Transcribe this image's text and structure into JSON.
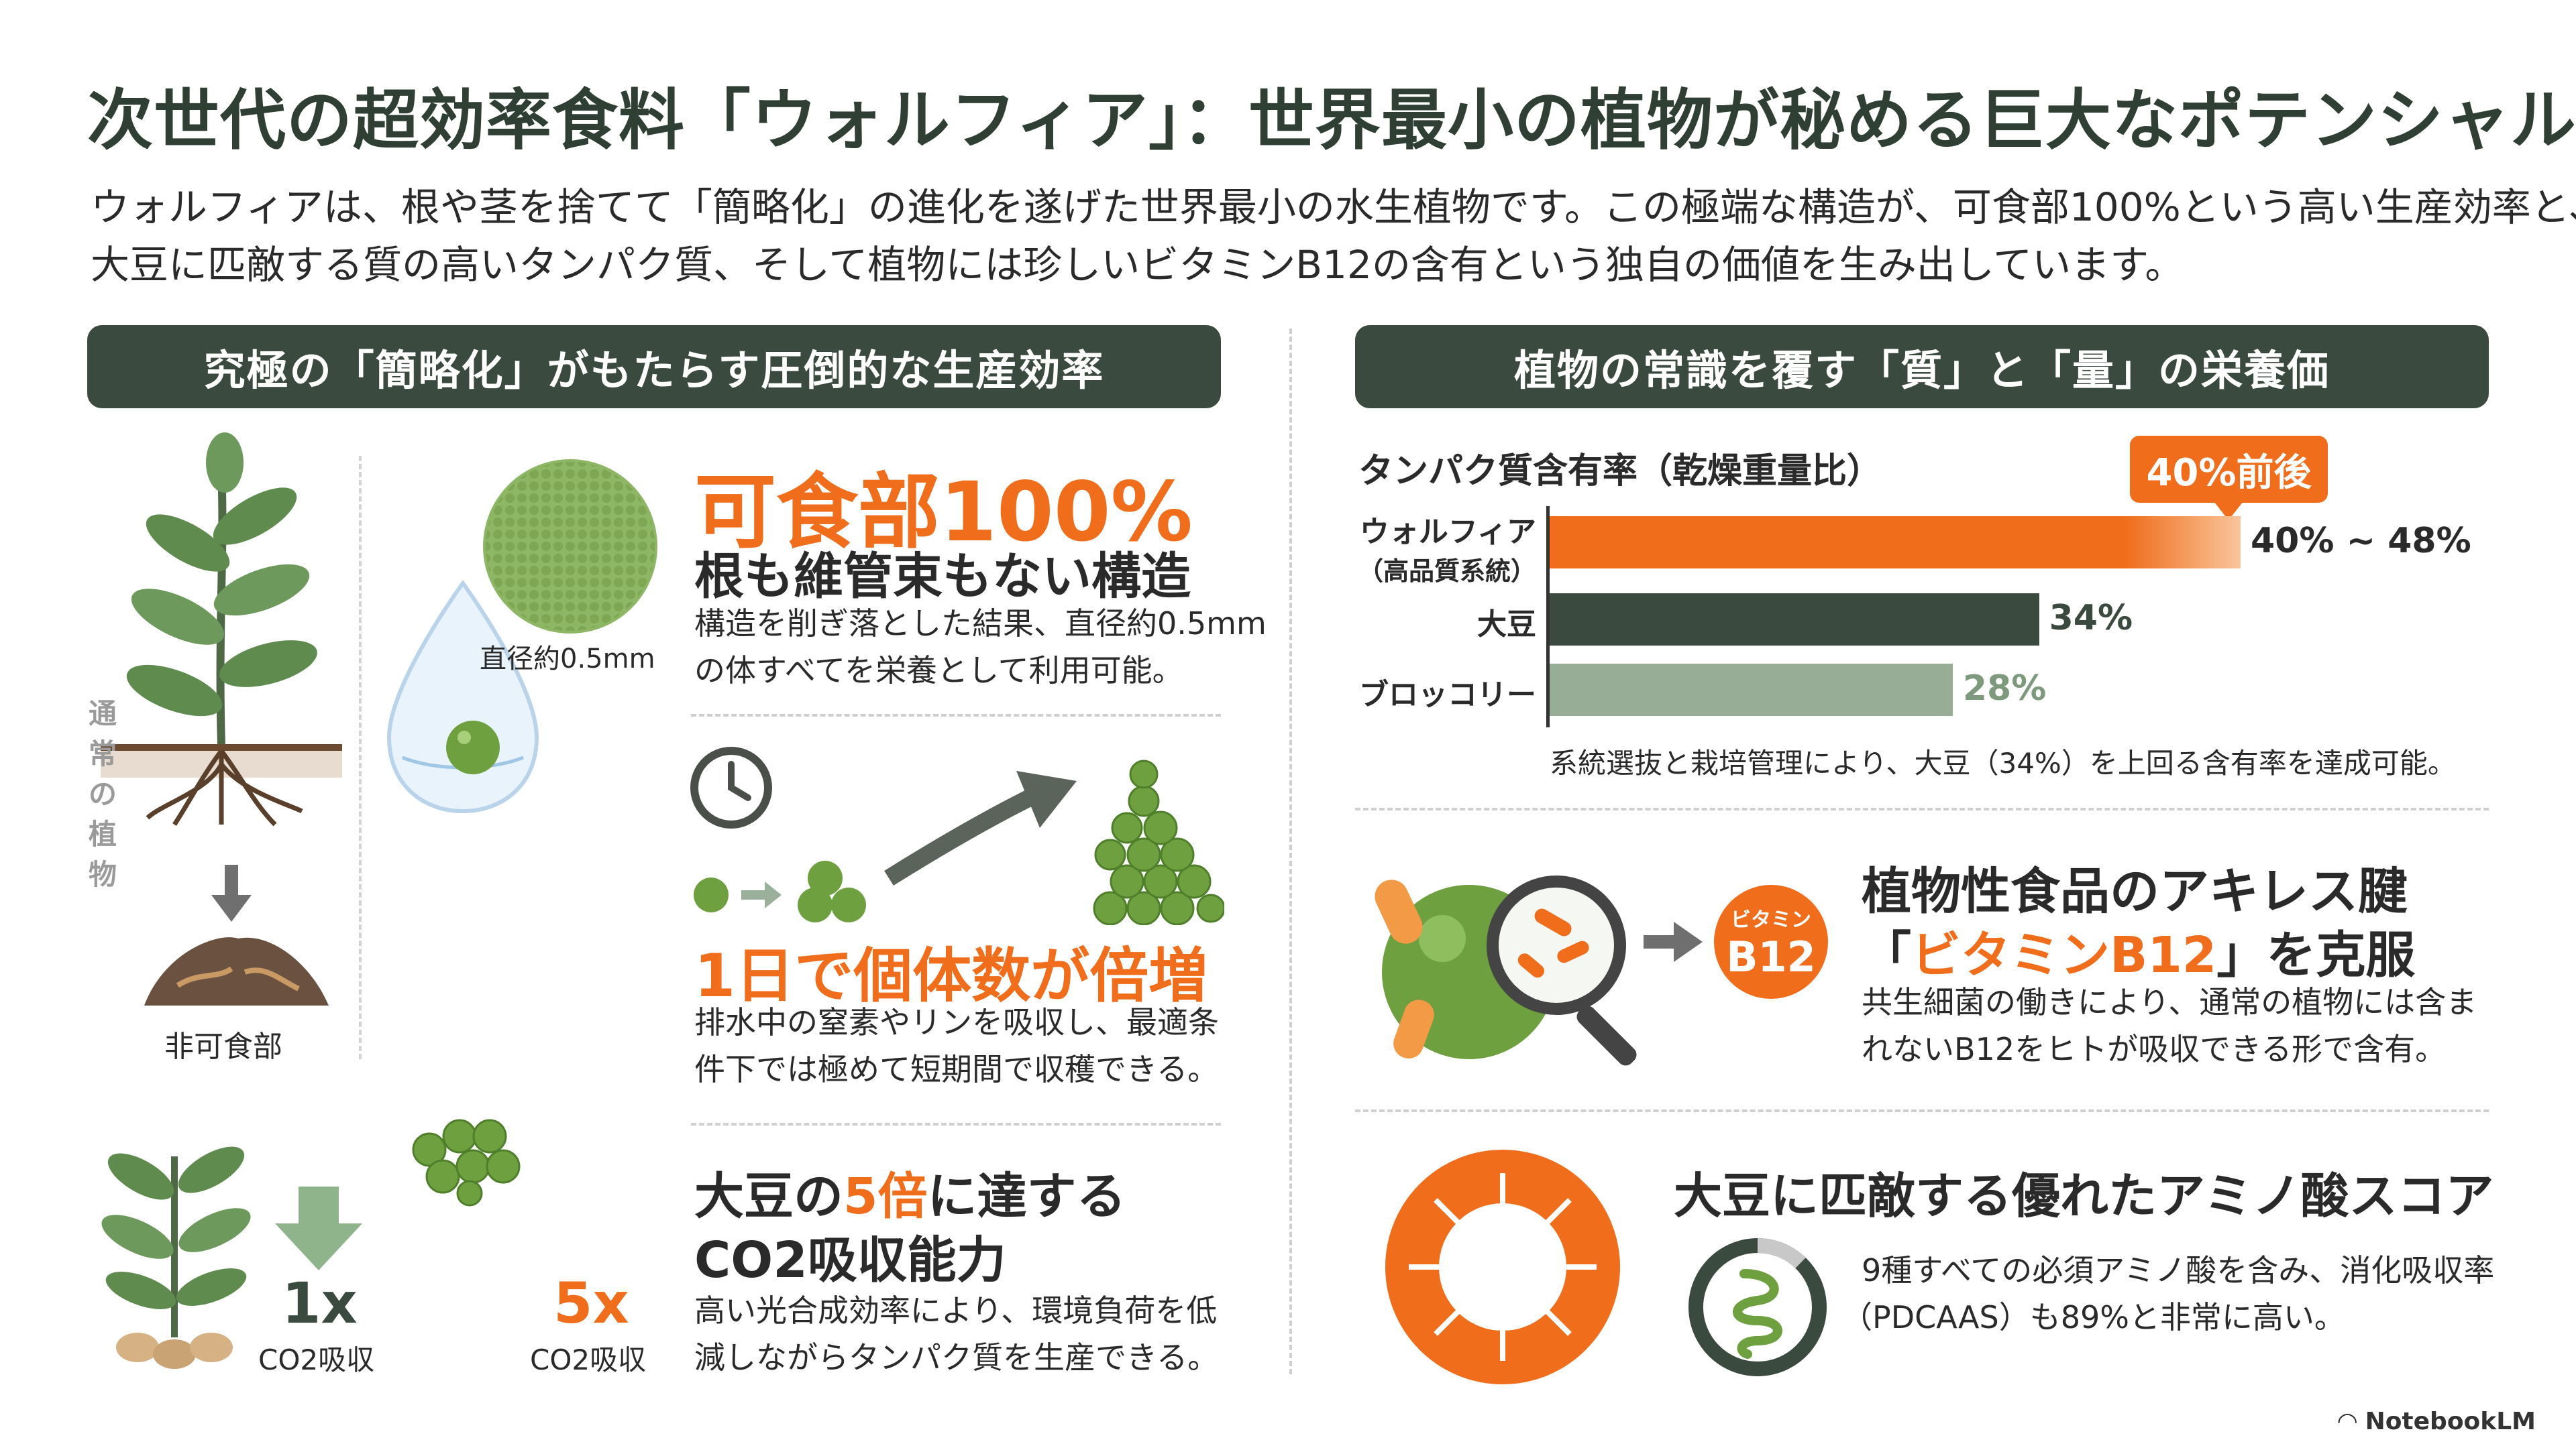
{
  "title": "次世代の超効率食料「ウォルフィア」：世界最小の植物が秘める巨大なポテンシャル",
  "intro": {
    "line1": "ウォルフィアは、根や茎を捨てて「簡略化」の進化を遂げた世界最小の水生植物です。この極端な構造が、可食部100%という高い生産効率と、",
    "line2": "大豆に匹敵する質の高いタンパク質、そして植物には珍しいビタミンB12の含有という独自の価値を生み出しています。"
  },
  "left_section": {
    "header": "究極の「簡略化」がもたらす圧倒的な生産効率",
    "vertical_label": [
      "通",
      "常",
      "の",
      "植",
      "物"
    ],
    "inedible_label": "非可食部",
    "diameter_label": "直径約0.5mm",
    "block1": {
      "highlight": "可食部100%",
      "heading": "根も維管束もない構造",
      "line1": "構造を削ぎ落とした結果、直径約0.5mm",
      "line2": "の体すべてを栄養として利用可能。"
    },
    "block2": {
      "highlight": "1日で個体数が倍増",
      "line1": "排水中の窒素やリンを吸収し、最適条",
      "line2": "件下では極めて短期間で収穫できる。"
    },
    "block3": {
      "heading1_pre": "大豆の",
      "heading1_hl": "5倍",
      "heading1_post": "に達する",
      "heading2": "CO2吸収能力",
      "line1": "高い光合成効率により、環境負荷を低",
      "line2": "減しながらタンパク質を生産できる。",
      "left_mult": "1x",
      "left_label": "CO2吸収",
      "right_mult": "5x",
      "right_label": "CO2吸収"
    }
  },
  "right_section": {
    "header": "植物の常識を覆す「質」と「量」の栄養価",
    "chart_title": "タンパク質含有率（乾燥重量比）",
    "badge": "40%前後",
    "note": "系統選抜と栽培管理により、大豆（34%）を上回る含有率を達成可能。",
    "block_b12": {
      "heading1": "植物性食品のアキレス腱",
      "heading2_pre": "「",
      "heading2_hl": "ビタミンB12",
      "heading2_post": "」を克服",
      "line1": "共生細菌の働きにより、通常の植物には含ま",
      "line2": "れないB12をヒトが吸収できる形で含有。",
      "badge_top": "ビタミン",
      "badge_bottom": "B12"
    },
    "block_amino": {
      "heading": "大豆に匹敵する優れたアミノ酸スコア",
      "line1": "9種すべての必須アミノ酸を含み、消化吸収率",
      "line2": "（PDCAAS）も89%と非常に高い。"
    }
  },
  "chart_data": {
    "type": "bar",
    "orientation": "horizontal",
    "title": "タンパク質含有率（乾燥重量比）",
    "categories": [
      {
        "line1": "ウォルフィア",
        "line2": "（高品質系統）"
      },
      {
        "line1": "大豆",
        "line2": ""
      },
      {
        "line1": "ブロッコリー",
        "line2": ""
      }
    ],
    "values": [
      48,
      34,
      28
    ],
    "value_labels": [
      "40% ~ 48%",
      "34%",
      "28%"
    ],
    "range_low": 40,
    "xlim": [
      0,
      48
    ],
    "colors": [
      "#ef6d1b",
      "#3b4a3f",
      "#98ad96"
    ]
  },
  "footer": {
    "brand": "NotebookLM"
  }
}
